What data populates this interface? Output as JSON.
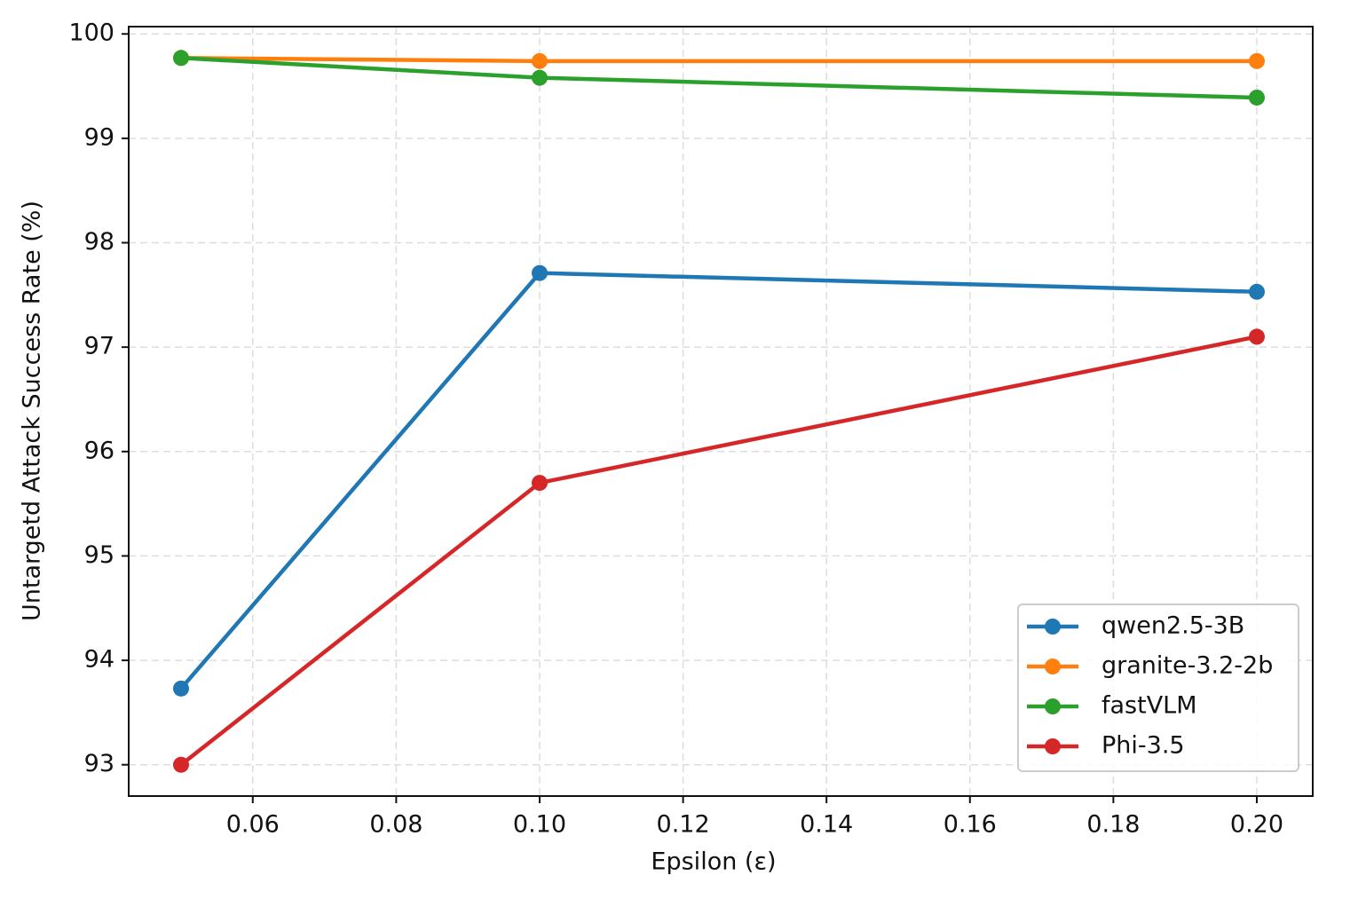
{
  "chart_data": {
    "type": "line",
    "x_label": "Epsilon (ε)",
    "y_label": "Untargetd Attack Success Rate (%)",
    "x": [
      0.05,
      0.1,
      0.2
    ],
    "series": [
      {
        "name": "qwen2.5-3B",
        "color": "#1f77b4",
        "values": [
          93.73,
          97.71,
          97.53
        ]
      },
      {
        "name": "granite-3.2-2b",
        "color": "#ff7f0e",
        "values": [
          99.77,
          99.74,
          99.74
        ]
      },
      {
        "name": "fastVLM",
        "color": "#2ca02c",
        "values": [
          99.77,
          99.58,
          99.39
        ]
      },
      {
        "name": "Phi-3.5",
        "color": "#d62728",
        "values": [
          93.0,
          95.7,
          97.1
        ]
      }
    ],
    "xlim": [
      0.0427,
      0.2078
    ],
    "ylim": [
      92.7,
      100.07
    ],
    "xticks": [
      {
        "value": 0.06,
        "label": "0.06"
      },
      {
        "value": 0.08,
        "label": "0.08"
      },
      {
        "value": 0.1,
        "label": "0.10"
      },
      {
        "value": 0.12,
        "label": "0.12"
      },
      {
        "value": 0.14,
        "label": "0.14"
      },
      {
        "value": 0.16,
        "label": "0.16"
      },
      {
        "value": 0.18,
        "label": "0.18"
      },
      {
        "value": 0.2,
        "label": "0.20"
      }
    ],
    "yticks": [
      93,
      94,
      95,
      96,
      97,
      98,
      99,
      100
    ],
    "grid": true,
    "legend": "lower right"
  }
}
